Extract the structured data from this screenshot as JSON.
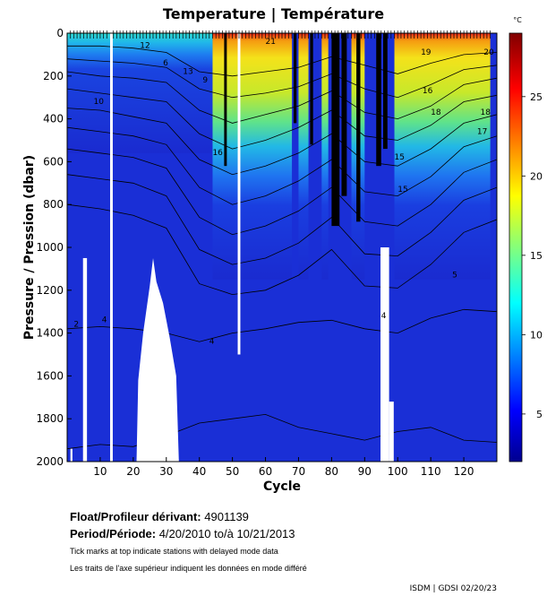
{
  "chart_data": {
    "type": "heatmap",
    "title": "Temperature | Température",
    "xlabel": "Cycle",
    "ylabel": "Pressure / Pression (dbar)",
    "xlim": [
      0,
      130
    ],
    "ylim": [
      2000,
      0
    ],
    "x_ticks": [
      10,
      20,
      30,
      40,
      50,
      60,
      70,
      80,
      90,
      100,
      110,
      120
    ],
    "y_ticks": [
      0,
      200,
      400,
      600,
      800,
      1000,
      1200,
      1400,
      1600,
      1800,
      2000
    ],
    "colorbar": {
      "unit": "°C",
      "range": [
        2,
        29
      ],
      "ticks": [
        5,
        10,
        15,
        20,
        25
      ],
      "colormap": "jet"
    },
    "contour_labels": [
      "2",
      "4",
      "5",
      "6",
      "9",
      "10",
      "12",
      "13",
      "15",
      "16",
      "17",
      "18",
      "19",
      "20",
      "21"
    ],
    "warm_cycles": [
      {
        "start": 44,
        "end": 52
      },
      {
        "start": 52,
        "end": 68
      },
      {
        "start": 70,
        "end": 73
      },
      {
        "start": 77,
        "end": 79
      },
      {
        "start": 86,
        "end": 90
      },
      {
        "start": 99,
        "end": 128
      }
    ],
    "cold_shallow_cycles": [
      {
        "start": 0,
        "end": 44
      }
    ],
    "black_streaks": [
      {
        "x": 80,
        "w": 2.4,
        "depth": 900
      },
      {
        "x": 83,
        "w": 1.6,
        "depth": 760
      },
      {
        "x": 87.5,
        "w": 1.2,
        "depth": 880
      },
      {
        "x": 93.5,
        "w": 1.5,
        "depth": 620
      },
      {
        "x": 95.6,
        "w": 1.3,
        "depth": 540
      },
      {
        "x": 73.5,
        "w": 0.9,
        "depth": 520
      },
      {
        "x": 68.5,
        "w": 0.9,
        "depth": 420
      },
      {
        "x": 47.5,
        "w": 0.8,
        "depth": 620
      }
    ],
    "missing_data": [
      {
        "cycle_start": 13.0,
        "cycle_end": 13.8,
        "from": 0,
        "to": 2000
      },
      {
        "cycle_start": 51.6,
        "cycle_end": 52.4,
        "from": 0,
        "to": 1500
      },
      {
        "cycle_start": 4.8,
        "cycle_end": 6.0,
        "from": 1050,
        "to": 2000
      },
      {
        "cycle_start": 1.0,
        "cycle_end": 1.6,
        "from": 1940,
        "to": 2000
      },
      {
        "cycle_start": 94.8,
        "cycle_end": 97.4,
        "from": 1000,
        "to": 2000
      },
      {
        "cycle_start": 97.4,
        "cycle_end": 98.8,
        "from": 1720,
        "to": 2000
      }
    ],
    "white_hump": [
      [
        21.0,
        2000
      ],
      [
        21.5,
        1620
      ],
      [
        23.0,
        1400
      ],
      [
        25.0,
        1180
      ],
      [
        26.0,
        1050
      ],
      [
        27.0,
        1160
      ],
      [
        29.0,
        1260
      ],
      [
        31.0,
        1420
      ],
      [
        33.0,
        1600
      ],
      [
        33.8,
        2000
      ]
    ],
    "contours": [
      {
        "depths": [
          60,
          60,
          70,
          90,
          180,
          200,
          180,
          160,
          110,
          150,
          190,
          140,
          100,
          90
        ]
      },
      {
        "depths": [
          120,
          130,
          140,
          160,
          260,
          300,
          280,
          250,
          190,
          260,
          300,
          240,
          170,
          150
        ]
      },
      {
        "depths": [
          180,
          200,
          210,
          230,
          360,
          420,
          380,
          340,
          270,
          370,
          400,
          340,
          240,
          210
        ]
      },
      {
        "depths": [
          260,
          280,
          300,
          320,
          470,
          540,
          500,
          440,
          360,
          480,
          500,
          430,
          320,
          290
        ]
      },
      {
        "depths": [
          350,
          360,
          390,
          420,
          590,
          660,
          620,
          560,
          470,
          600,
          620,
          540,
          420,
          380
        ]
      },
      {
        "depths": [
          440,
          460,
          480,
          520,
          720,
          800,
          760,
          690,
          590,
          740,
          760,
          670,
          530,
          480
        ]
      },
      {
        "depths": [
          540,
          560,
          580,
          630,
          860,
          940,
          900,
          830,
          720,
          880,
          900,
          800,
          650,
          590
        ]
      },
      {
        "depths": [
          660,
          680,
          700,
          760,
          1010,
          1080,
          1050,
          980,
          860,
          1030,
          1040,
          930,
          780,
          720
        ]
      },
      {
        "depths": [
          800,
          820,
          850,
          910,
          1170,
          1220,
          1200,
          1130,
          1010,
          1180,
          1190,
          1080,
          930,
          870
        ]
      },
      {
        "depths": [
          1380,
          1370,
          1380,
          1400,
          1440,
          1400,
          1380,
          1350,
          1340,
          1380,
          1400,
          1330,
          1290,
          1300
        ]
      },
      {
        "depths": [
          1940,
          1920,
          1930,
          1880,
          1820,
          1800,
          1780,
          1840,
          1870,
          1900,
          1860,
          1840,
          1900,
          1910
        ]
      }
    ],
    "delayed_mode_ticks": [
      1,
      2,
      3,
      4,
      5,
      6,
      7,
      8,
      9,
      10,
      11,
      12,
      14,
      15,
      16,
      17,
      18,
      19,
      20,
      21,
      22,
      23,
      24,
      25,
      26,
      27,
      28,
      29,
      30,
      31,
      32,
      33,
      34,
      35,
      36,
      37,
      38,
      39,
      40,
      41,
      42,
      43,
      44,
      45,
      46,
      47,
      48,
      49,
      50,
      51,
      52,
      53,
      54,
      55,
      56,
      57,
      58,
      59,
      60,
      61,
      62,
      63,
      64,
      65,
      66,
      67,
      68,
      69,
      70,
      71,
      72,
      73,
      74,
      75,
      76,
      77,
      78,
      79,
      80,
      81,
      82,
      83,
      84,
      85,
      86,
      87,
      88,
      89,
      90,
      91,
      92,
      93,
      94,
      95,
      96,
      97,
      98,
      99,
      100,
      101,
      102,
      103,
      104,
      105,
      106,
      107,
      108,
      109,
      110,
      111,
      112,
      113,
      114,
      115,
      116,
      117,
      118,
      119,
      120,
      121,
      122,
      123,
      124,
      125,
      126,
      127,
      128
    ]
  },
  "info": {
    "float_label": "Float/Profileur dérivant:",
    "float_id": "4901139",
    "period_label": "Period/Période:",
    "period_value": "4/20/2010  to/à  10/21/2013",
    "note_en": "Tick marks at top indicate stations with delayed mode data",
    "note_fr": "Les traits de l'axe supérieur indiquent les données en mode différé",
    "credit": "ISDM | GDSI  02/20/23"
  },
  "colors": {
    "deep_blue": "#1a2fd6",
    "axis": "#000000",
    "background": "#ffffff"
  }
}
